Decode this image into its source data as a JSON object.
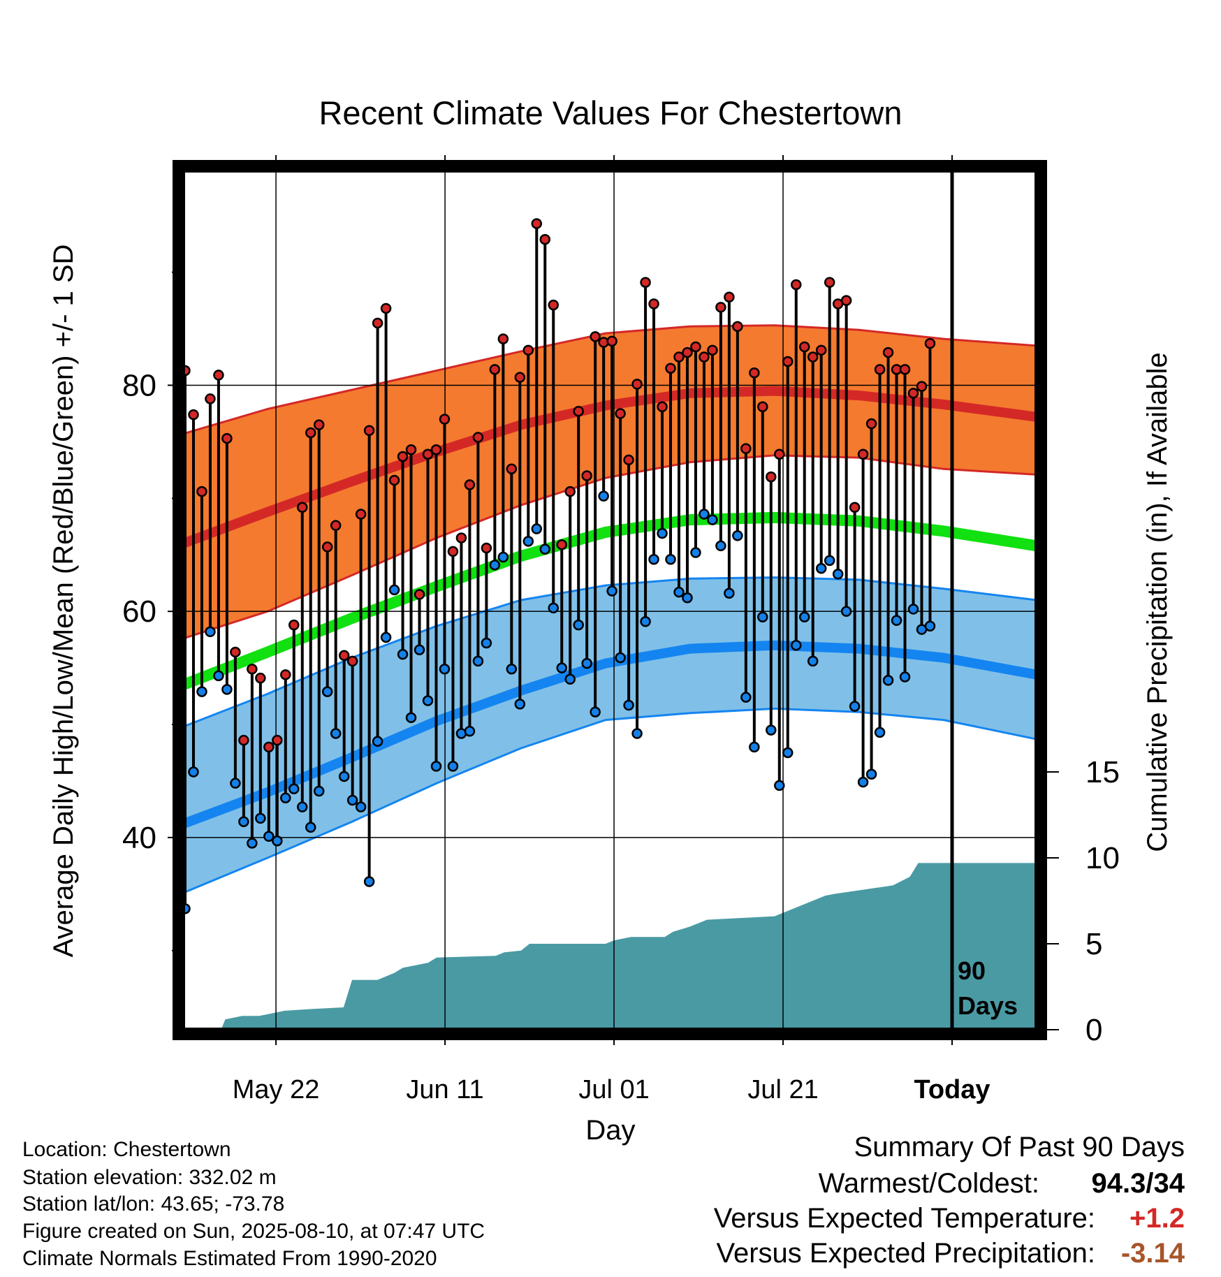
{
  "chart_data": {
    "type": "line",
    "title": "Recent Climate Values For Chestertown",
    "xlabel": "Day",
    "ylabel": "Average Daily High/Low/Mean (Red/Blue/Green) +/- 1 SD",
    "y2label": "Cumulative Precipitation (in), If Available",
    "xticks": [
      {
        "label": "May 22",
        "day": 11
      },
      {
        "label": "Jun 11",
        "day": 31
      },
      {
        "label": "Jul 01",
        "day": 51
      },
      {
        "label": "Jul 21",
        "day": 71
      },
      {
        "label": "Today",
        "day": 91
      }
    ],
    "xlim": [
      0,
      101
    ],
    "ylim": [
      23,
      99
    ],
    "yticks": [
      40,
      60,
      80
    ],
    "y2lim": [
      0,
      50
    ],
    "y2ticks": [
      0,
      5,
      10,
      15
    ],
    "marker_label": "90 Days",
    "grid": true,
    "normals": {
      "day": [
        0,
        10,
        20,
        30,
        40,
        50,
        60,
        70,
        80,
        90,
        101
      ],
      "high_mean": [
        66.0,
        68.8,
        71.5,
        74.1,
        76.5,
        78.2,
        79.3,
        79.5,
        79.1,
        78.3,
        77.2
      ],
      "high_upper": [
        75.7,
        77.9,
        79.6,
        81.3,
        83.0,
        84.6,
        85.2,
        85.3,
        84.9,
        84.1,
        83.5
      ],
      "high_lower": [
        57.6,
        60.0,
        63.2,
        66.5,
        69.4,
        71.8,
        73.2,
        73.8,
        73.6,
        72.6,
        72.1
      ],
      "mean": [
        53.5,
        56.4,
        59.4,
        62.2,
        64.9,
        67.0,
        68.1,
        68.3,
        68.0,
        67.1,
        65.8
      ],
      "low_mean": [
        41.2,
        44.0,
        47.1,
        50.3,
        53.0,
        55.4,
        56.7,
        57.0,
        56.7,
        55.9,
        54.4
      ],
      "low_upper": [
        49.8,
        52.7,
        55.9,
        58.7,
        61.0,
        62.3,
        62.9,
        63.0,
        62.8,
        62.0,
        61.0
      ],
      "low_lower": [
        35.1,
        38.2,
        41.4,
        44.8,
        47.9,
        50.4,
        51.0,
        51.4,
        51.1,
        50.4,
        48.7
      ]
    },
    "daily": {
      "high": [
        81.3,
        77.4,
        70.6,
        78.8,
        80.9,
        75.3,
        56.4,
        48.6,
        54.9,
        54.1,
        48.0,
        48.6,
        54.4,
        58.8,
        69.2,
        75.8,
        76.5,
        65.7,
        67.6,
        56.1,
        55.6,
        68.6,
        76.0,
        85.5,
        86.8,
        71.6,
        73.7,
        74.3,
        61.5,
        73.9,
        74.3,
        77.0,
        65.3,
        66.5,
        71.2,
        75.4,
        65.6,
        81.4,
        84.1,
        72.6,
        80.7,
        83.1,
        94.3,
        92.9,
        87.1,
        65.9,
        70.6,
        77.7,
        72.0,
        84.3,
        83.8,
        83.9,
        77.5,
        73.4,
        80.1,
        89.1,
        87.2,
        78.1,
        81.5,
        82.5,
        82.9,
        83.4,
        82.5,
        83.1,
        86.9,
        87.8,
        85.2,
        74.4,
        81.1,
        78.1,
        71.9,
        73.9,
        82.1,
        88.9,
        83.4,
        82.5,
        83.1,
        89.1,
        87.2,
        87.5,
        69.2,
        73.9,
        76.6,
        81.4,
        82.9,
        81.4,
        81.4,
        79.3,
        79.9,
        83.7
      ],
      "low": [
        33.7,
        45.8,
        52.9,
        58.2,
        54.3,
        53.1,
        44.8,
        41.4,
        39.5,
        41.7,
        40.1,
        39.7,
        43.5,
        44.3,
        42.7,
        40.9,
        44.1,
        52.9,
        49.2,
        45.4,
        43.3,
        42.7,
        36.1,
        48.5,
        57.7,
        61.9,
        56.2,
        50.6,
        56.6,
        52.1,
        46.3,
        54.9,
        46.3,
        49.2,
        49.4,
        55.6,
        57.2,
        64.1,
        64.8,
        54.9,
        51.8,
        66.2,
        67.3,
        65.5,
        60.3,
        55.0,
        54.0,
        58.8,
        55.4,
        51.1,
        70.2,
        61.8,
        55.9,
        51.7,
        49.2,
        59.1,
        64.6,
        66.9,
        64.6,
        61.7,
        61.2,
        65.2,
        68.6,
        68.1,
        65.8,
        61.6,
        66.7,
        52.4,
        48.0,
        59.5,
        49.5,
        44.6,
        47.5,
        57.0,
        59.5,
        55.6,
        63.8,
        64.5,
        63.3,
        60.0,
        51.6,
        44.9,
        45.6,
        49.3,
        53.9,
        59.2,
        54.2,
        60.2,
        58.4,
        58.7
      ]
    },
    "precip_cumulative": {
      "day": [
        0,
        4.5,
        5,
        7,
        9,
        10,
        12,
        15,
        19,
        20,
        23,
        25,
        26,
        27,
        29,
        30,
        37,
        38,
        40,
        41,
        50,
        51,
        53,
        57,
        58,
        60,
        62,
        70,
        76,
        77,
        84,
        86,
        87,
        101
      ],
      "value": [
        0,
        0,
        0.6,
        0.8,
        0.8,
        0.9,
        1.1,
        1.2,
        1.3,
        2.9,
        2.9,
        3.3,
        3.6,
        3.7,
        3.9,
        4.2,
        4.3,
        4.5,
        4.6,
        5.0,
        5.0,
        5.2,
        5.4,
        5.4,
        5.7,
        6.0,
        6.4,
        6.6,
        7.8,
        7.9,
        8.4,
        8.9,
        9.7,
        9.7
      ]
    }
  },
  "colors": {
    "high_band": "#f47a2f",
    "high_line": "#d42826",
    "mean_line": "#11e011",
    "low_band": "#80c0e8",
    "low_line": "#1485f0",
    "precip_fill": "#4a9aa3",
    "high_marker": "#d42826",
    "low_marker": "#1480e8",
    "positive": "#d42826",
    "negative": "#a8552a"
  },
  "info": {
    "location": "Location: Chestertown",
    "elevation": "Station elevation: 332.02 m",
    "latlon": "Station lat/lon: 43.65; -73.78",
    "created": "Figure created on Sun, 2025-08-10, at 07:47 UTC",
    "normals": "Climate Normals Estimated From 1990-2020"
  },
  "summary": {
    "title": "Summary Of Past 90 Days",
    "warmest_label": "Warmest/Coldest:",
    "warmest_value": "94.3/34",
    "temp_label": "Versus Expected Temperature:",
    "temp_value": "+1.2",
    "precip_label": "Versus Expected Precipitation:",
    "precip_value": "-3.14"
  }
}
